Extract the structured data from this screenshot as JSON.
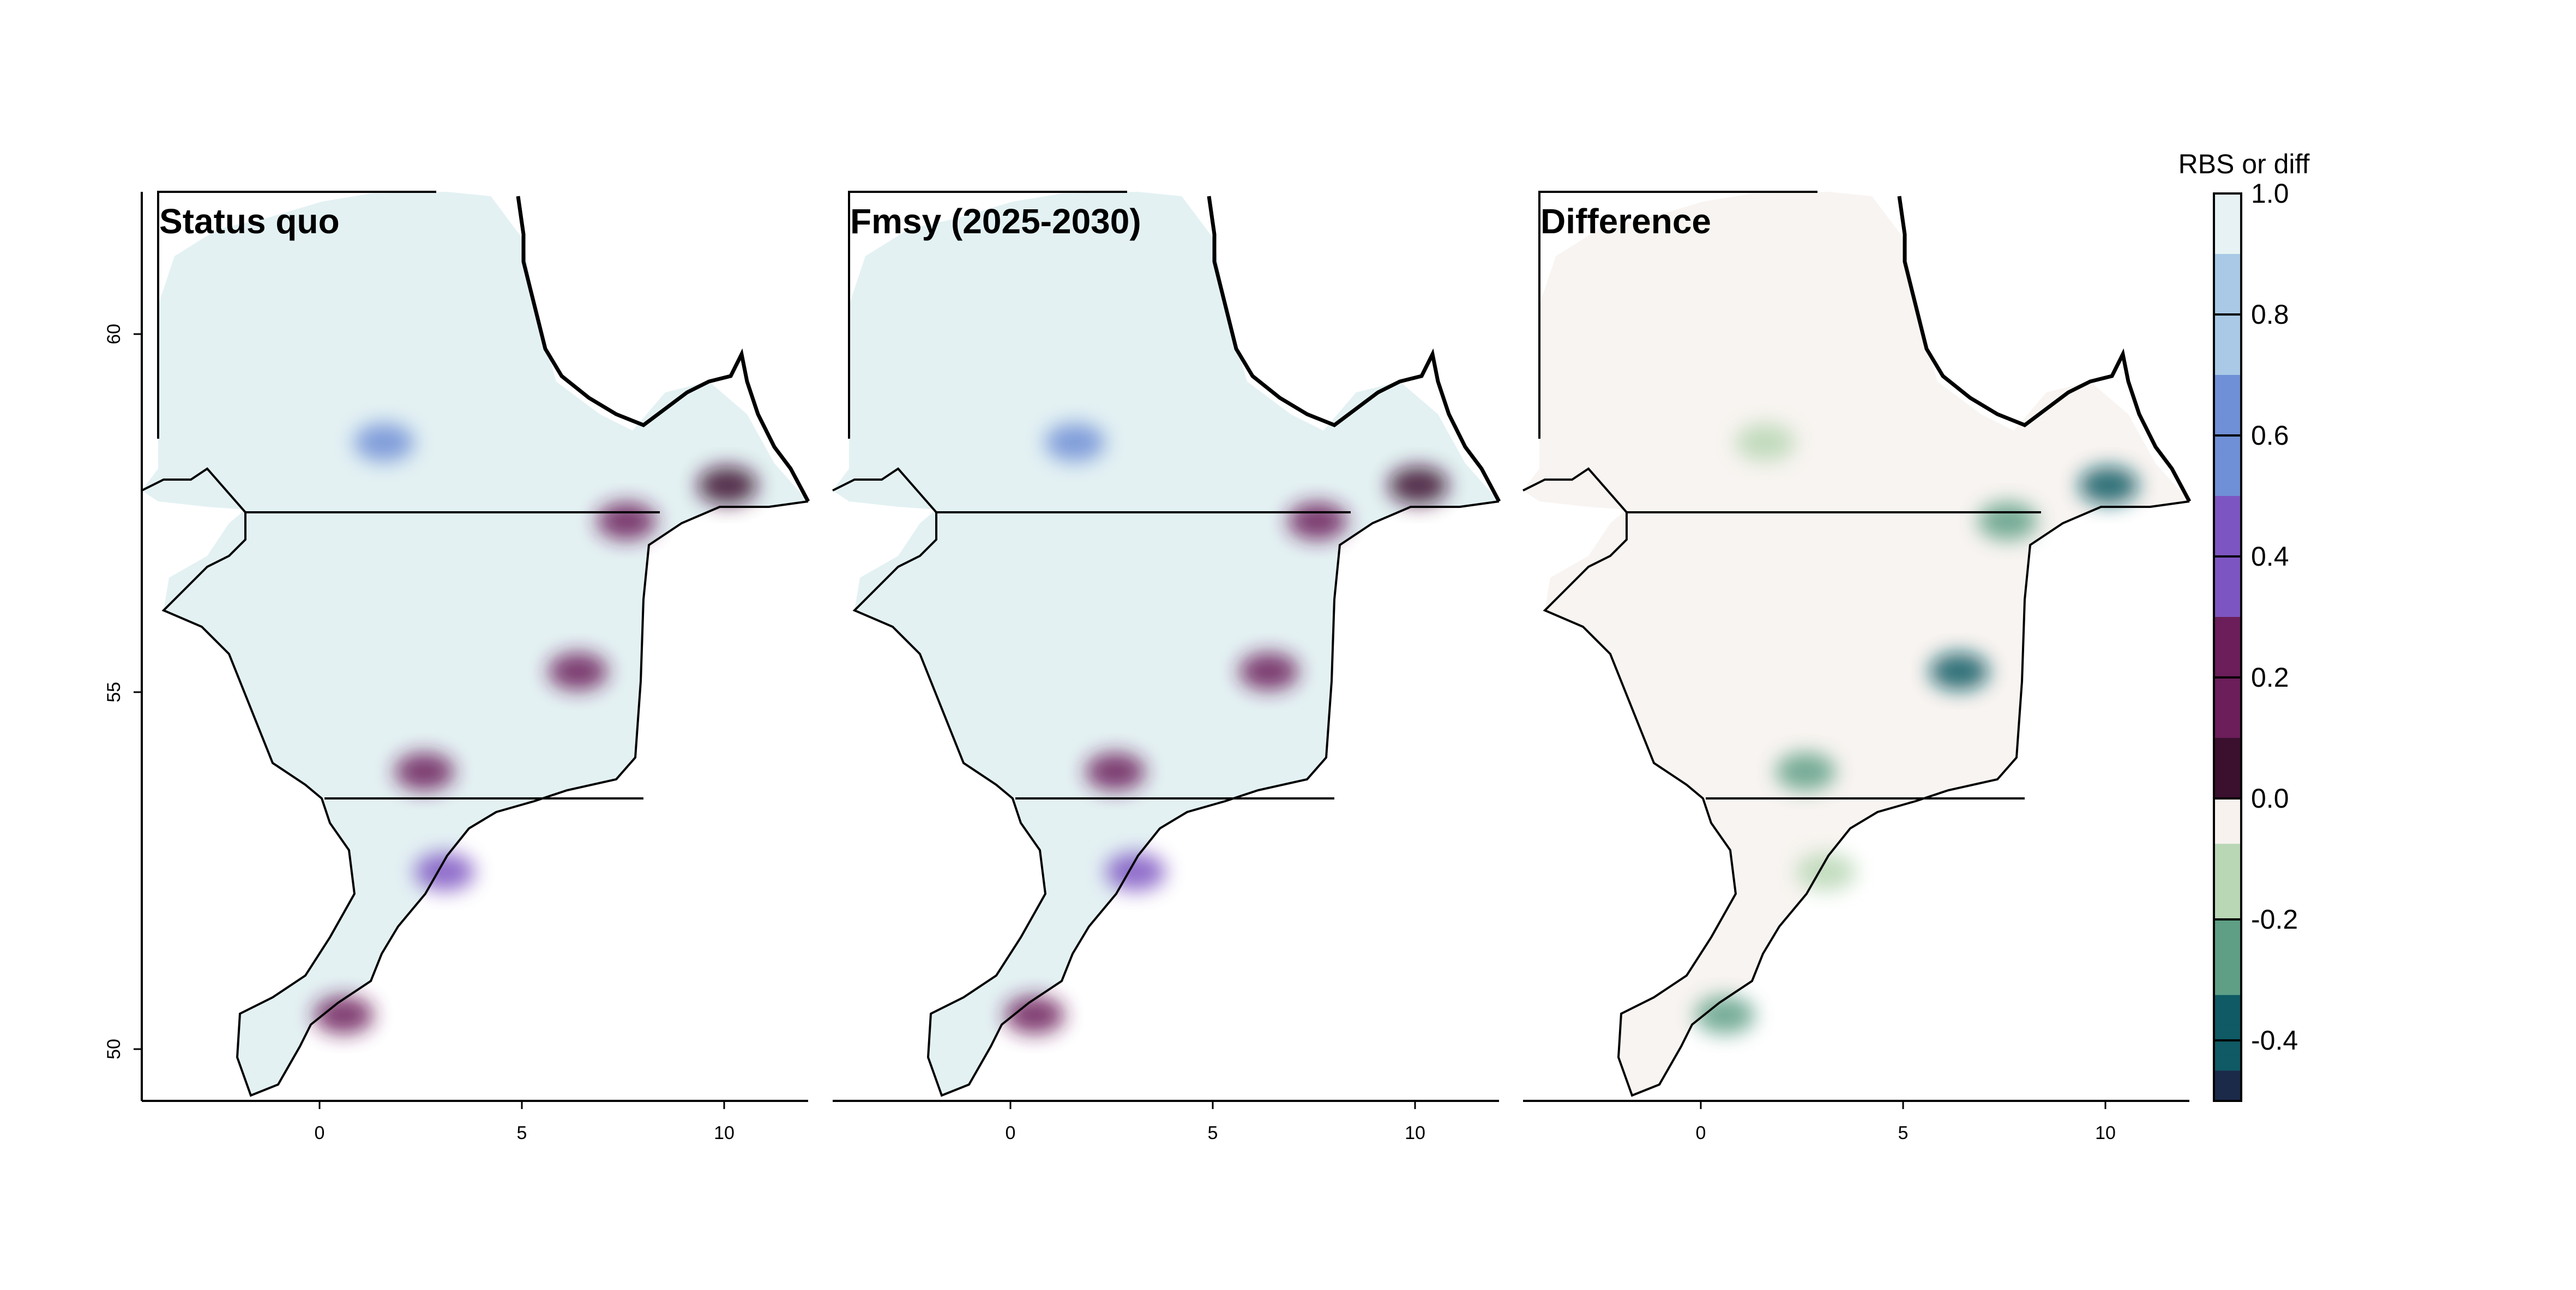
{
  "figure": {
    "panels": [
      {
        "id": "status-quo",
        "title": "Status quo",
        "palette": "rbs"
      },
      {
        "id": "fmsy",
        "title": "Fmsy (2025-2030)",
        "palette": "rbs"
      },
      {
        "id": "difference",
        "title": "Difference",
        "palette": "diff"
      }
    ],
    "x_ticks": [
      "0",
      "5",
      "10"
    ],
    "y_ticks": [
      "50",
      "55",
      "60"
    ],
    "colorbar": {
      "title": "RBS or diff",
      "ticks": [
        "1.0",
        "0.8",
        "0.6",
        "0.4",
        "0.2",
        "0.0",
        "-0.2",
        "-0.4"
      ],
      "range": [
        -0.5,
        1.0
      ]
    }
  },
  "colors": {
    "water_base": "#e3f1f3",
    "diff_base": "#f8f4f1",
    "land_outline": "#000000",
    "rbs_scale": [
      "#3b0f2e",
      "#6b1e5a",
      "#7d55c2",
      "#6f8fd6",
      "#a9c9e6",
      "#e6f2f4"
    ],
    "diff_scale": [
      "#1c2a4a",
      "#0f5a64",
      "#5e9f86",
      "#b9d7b5",
      "#f7f2ee"
    ]
  },
  "map": {
    "type": "raster-map",
    "projection": "lon-lat",
    "xlim": [
      -4.5,
      12
    ],
    "ylim": [
      49.3,
      62
    ],
    "hotspots": [
      {
        "lon": 10.0,
        "lat": 57.9,
        "rbs": 0.05,
        "diff": -0.42
      },
      {
        "lon": 7.5,
        "lat": 57.4,
        "rbs": 0.2,
        "diff": -0.3
      },
      {
        "lon": 6.3,
        "lat": 55.3,
        "rbs": 0.2,
        "diff": -0.35
      },
      {
        "lon": 2.5,
        "lat": 53.9,
        "rbs": 0.15,
        "diff": -0.3
      },
      {
        "lon": 0.5,
        "lat": 50.5,
        "rbs": 0.2,
        "diff": -0.2
      },
      {
        "lon": 1.5,
        "lat": 58.5,
        "rbs": 0.5,
        "diff": -0.15
      },
      {
        "lon": 3.0,
        "lat": 52.5,
        "rbs": 0.45,
        "diff": -0.12
      }
    ]
  }
}
